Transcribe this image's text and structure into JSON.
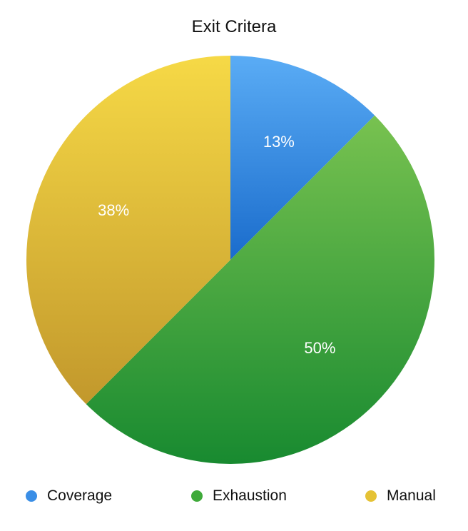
{
  "chart_data": {
    "type": "pie",
    "title": "Exit Critera",
    "categories": [
      "Coverage",
      "Exhaustion",
      "Manual"
    ],
    "values": [
      12.5,
      50,
      37.5
    ],
    "labels": [
      "13%",
      "50%",
      "38%"
    ],
    "colors": [
      "#3a8ee6",
      "#3faa3a",
      "#e5c235"
    ],
    "legend": "bottom"
  }
}
